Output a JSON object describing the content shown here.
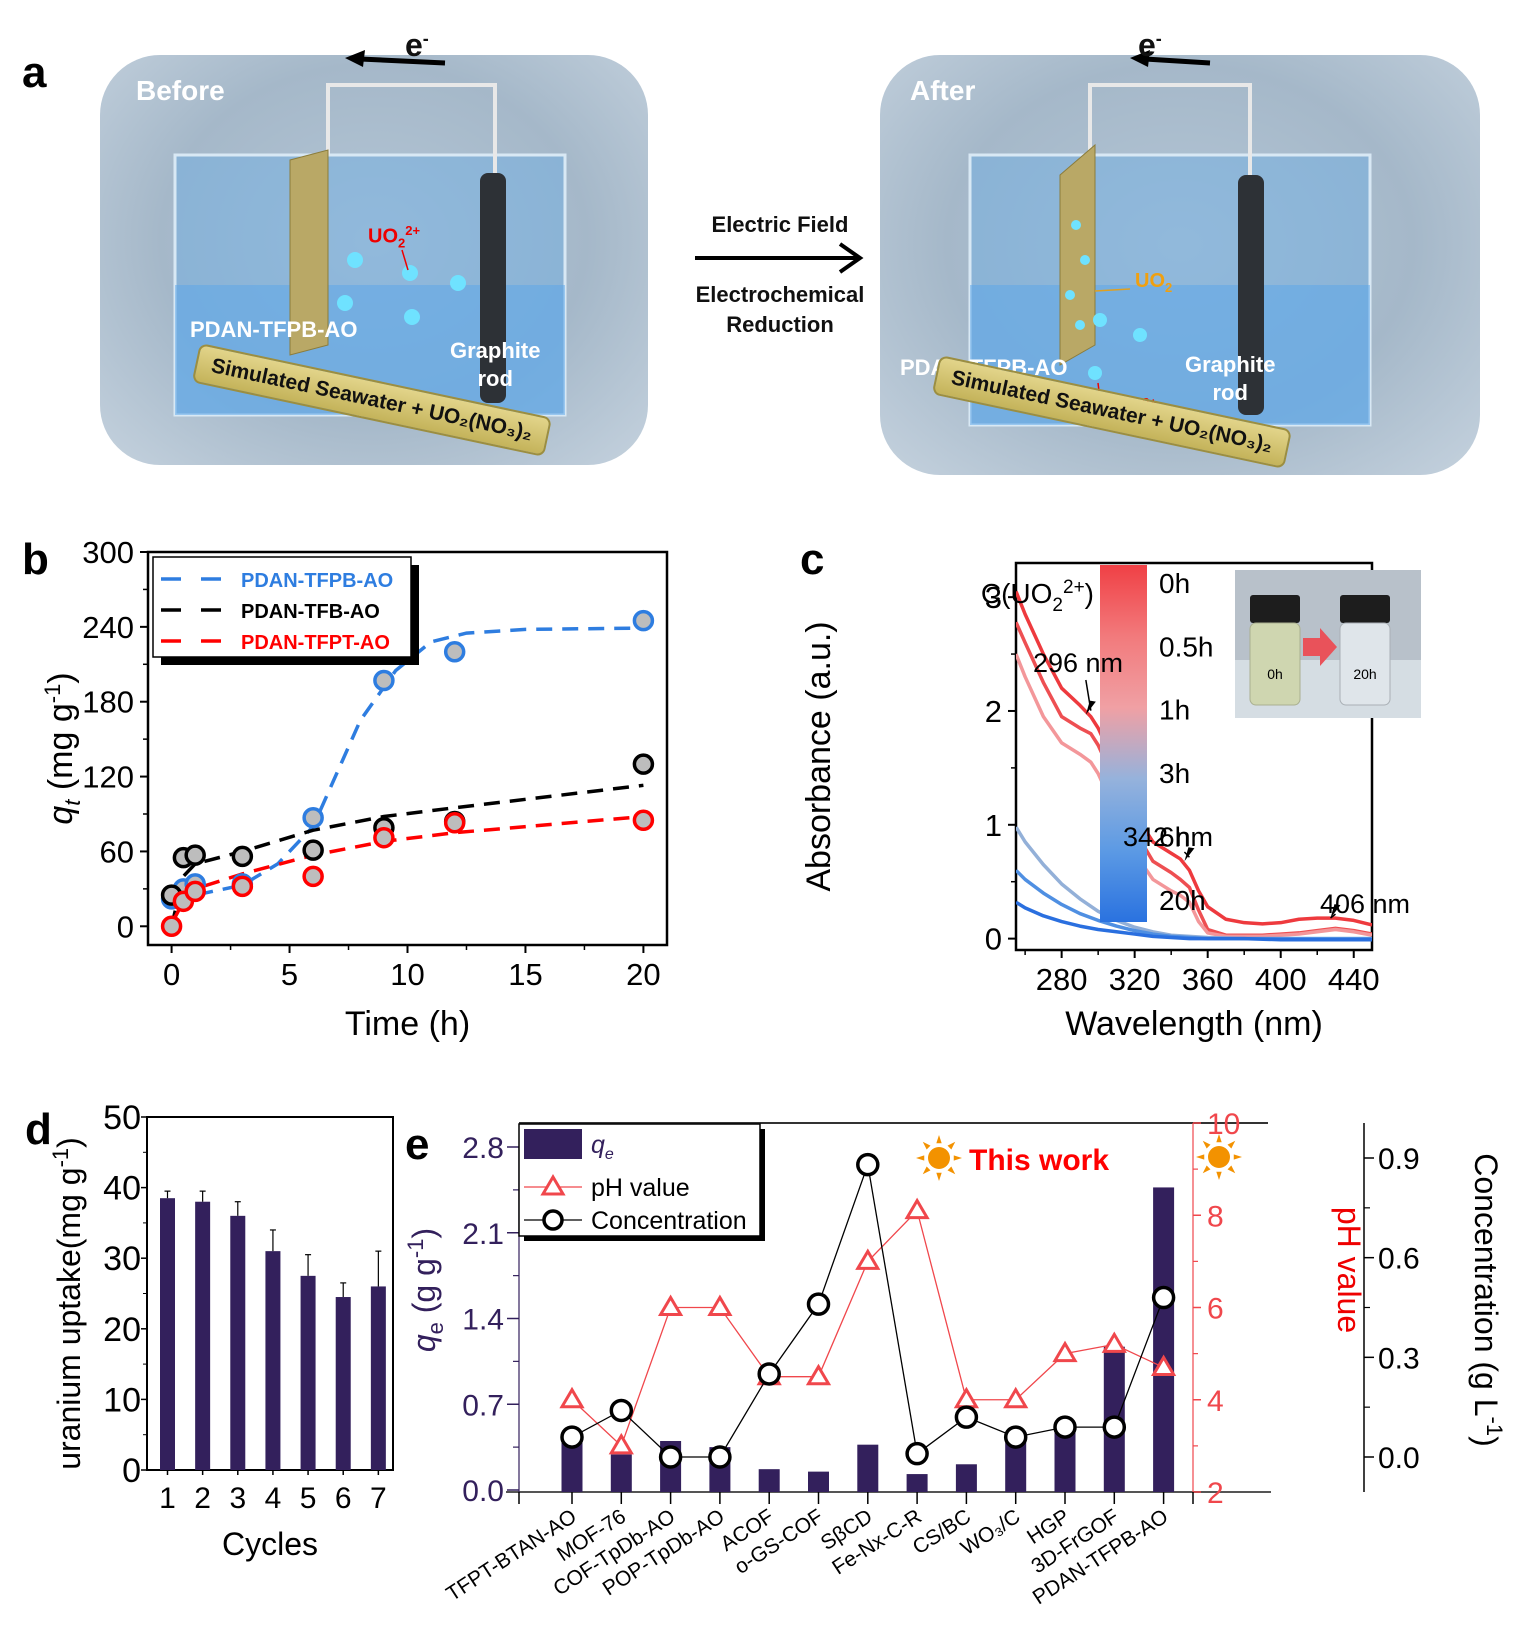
{
  "panel_labels": {
    "a": "a",
    "b": "b",
    "c": "c",
    "d": "d",
    "e": "e"
  },
  "schematic": {
    "before": {
      "title": "Before",
      "electron": "e",
      "electron_sup": "-",
      "ion": "UO",
      "ion_sub": "2",
      "ion_sup": "2+",
      "electrode": "PDAN-TFPB-AO",
      "counter_electrode_1": "Graphite",
      "counter_electrode_2": "rod",
      "solution": "Simulated Seawater + UO₂(NO₃)₂"
    },
    "after": {
      "title": "After",
      "electron": "e",
      "electron_sup": "-",
      "deposit": "UO",
      "deposit_sub": "2",
      "ion": "UO",
      "ion_sub": "2",
      "ion_sup": "2+",
      "electrode": "PDAN-TFPB-AO",
      "counter_electrode_1": "Graphite",
      "counter_electrode_2": "rod",
      "solution": "Simulated Seawater + UO₂(NO₃)₂"
    },
    "process_arrow": {
      "top": "Electric Field",
      "bottom_1": "Electrochemical",
      "bottom_2": "Reduction"
    }
  },
  "chart_data": [
    {
      "id": "b",
      "type": "scatter",
      "xlabel": "Time (h)",
      "ylabel": "q_t (mg g^-1)",
      "ylabel_parts": {
        "q": "q",
        "sub": "t",
        "unit": " (mg g",
        "sup": "-1",
        "close": ")"
      },
      "xlim": [
        -1,
        21
      ],
      "ylim": [
        -15,
        300
      ],
      "xticks": [
        0,
        5,
        10,
        15,
        20
      ],
      "yticks": [
        0,
        60,
        120,
        180,
        240,
        300
      ],
      "legend_position": "top-left",
      "series": [
        {
          "name": "PDAN-TFPB-AO",
          "color": "#2e7de0",
          "x": [
            0,
            0.5,
            1,
            3,
            6,
            9,
            12,
            20
          ],
          "y": [
            22,
            30,
            34,
            34,
            87,
            197,
            220,
            245
          ],
          "fit_x": [
            0,
            1,
            3,
            4.5,
            6,
            8,
            9.5,
            11,
            12.5,
            15,
            20
          ],
          "fit_y": [
            22,
            25,
            33,
            50,
            80,
            165,
            205,
            228,
            235,
            238,
            239
          ]
        },
        {
          "name": "PDAN-TFB-AO",
          "color": "#000000",
          "x": [
            0,
            0.5,
            1,
            3,
            6,
            9,
            12,
            20
          ],
          "y": [
            25,
            55,
            57,
            56,
            61,
            79,
            84,
            130
          ],
          "fit_x": [
            0,
            0.5,
            1,
            3,
            6,
            9,
            12,
            20
          ],
          "fit_y": [
            0,
            40,
            50,
            60,
            77,
            88,
            95,
            113
          ]
        },
        {
          "name": "PDAN-TFPT-AO",
          "color": "#ff0000",
          "x": [
            0,
            0.5,
            1,
            3,
            6,
            9,
            12,
            20
          ],
          "y": [
            0,
            20,
            28,
            32,
            40,
            71,
            83,
            85
          ],
          "fit_x": [
            0,
            0.5,
            1,
            3,
            6,
            9,
            12,
            20
          ],
          "fit_y": [
            2,
            20,
            30,
            42,
            57,
            68,
            75,
            88
          ]
        }
      ]
    },
    {
      "id": "c",
      "type": "line",
      "xlabel": "Wavelength (nm)",
      "ylabel": "Absorbance (a.u.)",
      "xlim": [
        255,
        450
      ],
      "ylim": [
        -0.1,
        3.3
      ],
      "xticks": [
        280,
        320,
        360,
        400,
        440
      ],
      "yticks": [
        0,
        1,
        2,
        3
      ],
      "colorbar_title": "C(UO₂²⁺)",
      "colorbar_title_parts": {
        "base": "C(UO",
        "sub": "2",
        "sup": "2+",
        "close": ")"
      },
      "colorbar_labels": [
        "0h",
        "0.5h",
        "1h",
        "3h",
        "6h",
        "20h"
      ],
      "colorbar_colors": [
        "#f04045",
        "#f27a7c",
        "#f0a0a4",
        "#95b2dc",
        "#5c9ae4",
        "#2a72e0"
      ],
      "annotations": [
        "296 nm",
        "342 nm",
        "406 nm"
      ],
      "inset_labels": [
        "0h",
        "20h"
      ],
      "series": [
        {
          "name": "0h",
          "color": "#ee3a3e",
          "x": [
            255,
            260,
            270,
            280,
            290,
            296,
            300,
            310,
            320,
            330,
            340,
            345,
            350,
            355,
            360,
            370,
            380,
            390,
            400,
            410,
            420,
            430,
            440,
            450
          ],
          "y": [
            3.05,
            2.85,
            2.5,
            2.2,
            2.05,
            1.95,
            1.85,
            1.5,
            1.1,
            0.85,
            0.75,
            0.7,
            0.6,
            0.42,
            0.28,
            0.17,
            0.14,
            0.13,
            0.14,
            0.17,
            0.18,
            0.18,
            0.16,
            0.12
          ]
        },
        {
          "name": "0.5h",
          "color": "#ee4f52",
          "x": [
            255,
            260,
            270,
            280,
            290,
            296,
            300,
            310,
            320,
            330,
            340,
            345,
            350,
            355,
            360,
            370,
            380,
            390,
            400,
            410,
            420,
            430,
            440,
            450
          ],
          "y": [
            2.78,
            2.6,
            2.25,
            1.95,
            1.85,
            1.8,
            1.7,
            1.35,
            0.95,
            0.68,
            0.58,
            0.52,
            0.45,
            0.25,
            0.08,
            0.03,
            0.03,
            0.03,
            0.04,
            0.05,
            0.07,
            0.09,
            0.07,
            0.04
          ]
        },
        {
          "name": "1h",
          "color": "#f3979a",
          "x": [
            255,
            260,
            270,
            280,
            290,
            296,
            300,
            310,
            320,
            330,
            340,
            345,
            350,
            355,
            360,
            370,
            380,
            390,
            400,
            410,
            420,
            430,
            440,
            450
          ],
          "y": [
            2.5,
            2.3,
            1.95,
            1.72,
            1.62,
            1.55,
            1.45,
            1.1,
            0.75,
            0.52,
            0.42,
            0.38,
            0.32,
            0.15,
            0.05,
            0.02,
            0.02,
            0.02,
            0.03,
            0.04,
            0.06,
            0.08,
            0.06,
            0.03
          ]
        },
        {
          "name": "3h",
          "color": "#93b0d8",
          "x": [
            255,
            260,
            270,
            280,
            290,
            300,
            310,
            320,
            330,
            340,
            350,
            360,
            380,
            400,
            420,
            450
          ],
          "y": [
            0.98,
            0.85,
            0.65,
            0.48,
            0.35,
            0.24,
            0.16,
            0.1,
            0.06,
            0.03,
            0.02,
            0.01,
            0.0,
            0.0,
            0.0,
            0.0
          ]
        },
        {
          "name": "6h",
          "color": "#4f8fe2",
          "x": [
            255,
            260,
            270,
            280,
            290,
            300,
            310,
            320,
            330,
            340,
            350,
            360,
            380,
            400,
            420,
            450
          ],
          "y": [
            0.6,
            0.52,
            0.4,
            0.3,
            0.22,
            0.16,
            0.11,
            0.07,
            0.04,
            0.02,
            0.01,
            0.0,
            0.0,
            0.0,
            0.0,
            0.0
          ]
        },
        {
          "name": "20h",
          "color": "#2a6fdf",
          "x": [
            255,
            260,
            270,
            280,
            290,
            300,
            310,
            320,
            330,
            340,
            350,
            360,
            380,
            400,
            420,
            450
          ],
          "y": [
            0.32,
            0.27,
            0.2,
            0.15,
            0.11,
            0.08,
            0.06,
            0.04,
            0.02,
            0.01,
            0.0,
            0.0,
            0.0,
            -0.01,
            -0.01,
            -0.01
          ]
        }
      ]
    },
    {
      "id": "d",
      "type": "bar",
      "xlabel": "Cycles",
      "ylabel": "uranium uptake(mg g^-1)",
      "ylabel_parts": {
        "base": "uranium uptake(mg g",
        "sup": "-1",
        "close": ")"
      },
      "categories": [
        "1",
        "2",
        "3",
        "4",
        "5",
        "6",
        "7"
      ],
      "values": [
        38.5,
        38,
        36,
        31,
        27.5,
        24.5,
        26
      ],
      "errors": [
        1.0,
        1.5,
        2.0,
        3.0,
        3.0,
        2.0,
        5.0
      ],
      "ylim": [
        0,
        50
      ],
      "yticks": [
        0,
        10,
        20,
        30,
        40,
        50
      ],
      "color": "#33205c"
    },
    {
      "id": "e",
      "type": "bar",
      "categories": [
        "TFPT-BTAN-AO",
        "MOF-76",
        "COF-TpDb-AO",
        "POP-TpDb-AO",
        "ACOF",
        "o-GS-COF",
        "SβCD",
        "Fe-Nx-C-R",
        "CS/BC",
        "WO₃/C",
        "HGP",
        "3D-FrGOF",
        "PDAN-TFPB-AO"
      ],
      "left_axis": {
        "label": "q_e (g g^-1)",
        "label_parts": {
          "q": "q",
          "sub": "e",
          "unit": " (g g",
          "sup": "-1",
          "close": ")"
        },
        "ylim": [
          0,
          2.8
        ],
        "yticks": [
          0.0,
          0.7,
          1.4,
          2.1,
          2.8
        ],
        "color": "#33205c"
      },
      "right_axis_1": {
        "label": "pH value",
        "ylim": [
          2,
          10
        ],
        "yticks": [
          2,
          4,
          6,
          8,
          10
        ],
        "color": "#f0474c"
      },
      "right_axis_2": {
        "label": "Concentration (g L^-1)",
        "label_parts": {
          "base": "Concentration (g L",
          "sup": "-1",
          "close": ")"
        },
        "ylim": [
          -0.1,
          1.0
        ],
        "yticks": [
          0.0,
          0.3,
          0.6,
          0.9
        ],
        "color": "#000000"
      },
      "legend_position": "top-left",
      "legend": [
        {
          "name": "q_e",
          "label_parts": {
            "q": "q",
            "sub": "e"
          },
          "kind": "bar"
        },
        {
          "name": "pH value",
          "kind": "line-triangle"
        },
        {
          "name": "Concentration",
          "kind": "line-circle"
        }
      ],
      "annotation": "This work",
      "highlight_indices": [
        7,
        12
      ],
      "series": [
        {
          "name": "q_e",
          "kind": "bar",
          "axis": "left",
          "color": "#33205c",
          "values": [
            0.45,
            0.29,
            0.4,
            0.35,
            0.17,
            0.15,
            0.37,
            0.13,
            0.21,
            0.47,
            0.53,
            1.17,
            2.47
          ]
        },
        {
          "name": "pH value",
          "kind": "line",
          "axis": "right_1",
          "color": "#f0474c",
          "values": [
            4.0,
            3.0,
            6.0,
            6.0,
            4.5,
            4.5,
            7.0,
            8.1,
            4.0,
            4.0,
            5.0,
            5.2,
            4.7
          ]
        },
        {
          "name": "Concentration",
          "kind": "line",
          "axis": "right_2",
          "color": "#000000",
          "values": [
            0.06,
            0.14,
            0.0,
            0.0,
            0.25,
            0.46,
            0.88,
            0.01,
            0.12,
            0.06,
            0.09,
            0.09,
            0.48
          ]
        }
      ]
    }
  ]
}
